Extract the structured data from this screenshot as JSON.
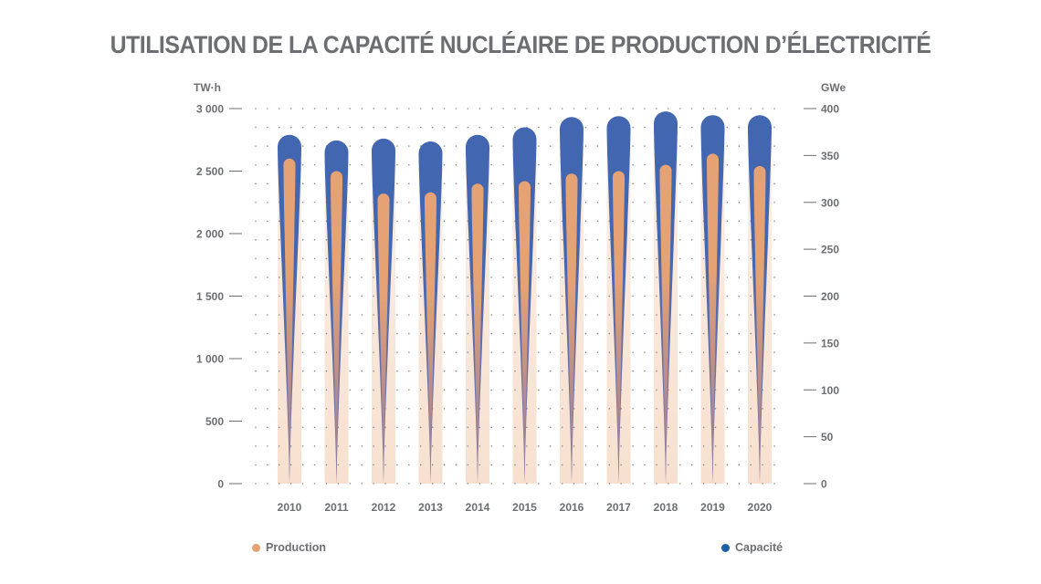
{
  "title": "UTILISATION DE LA CAPACITÉ NUCLÉAIRE DE PRODUCTION D’ÉLECTRICITÉ",
  "legend": {
    "production_label": "Production",
    "capacity_label": "Capacité"
  },
  "colors": {
    "production": "#e5a275",
    "production_light": "#f7e0cf",
    "capacity": "#4366b1",
    "capacity_mid": "#8a7aa2",
    "legend_capacity_dot": "#1b5fa5",
    "text": "#6d6e71",
    "grid_dots": "#8a8b8d"
  },
  "chart_data": {
    "type": "bar",
    "categories": [
      "2010",
      "2011",
      "2012",
      "2013",
      "2014",
      "2015",
      "2016",
      "2017",
      "2018",
      "2019",
      "2020"
    ],
    "series": [
      {
        "name": "Production",
        "axis": "left",
        "values": [
          2600,
          2500,
          2320,
          2330,
          2400,
          2420,
          2480,
          2500,
          2550,
          2640,
          2540
        ]
      },
      {
        "name": "Capacité",
        "axis": "right",
        "values": [
          372,
          366,
          368,
          365,
          372,
          380,
          391,
          392,
          397,
          393,
          393
        ]
      }
    ],
    "y_left": {
      "label": "TW·h",
      "ylim": [
        0,
        3000
      ],
      "ticks": [
        0,
        500,
        1000,
        1500,
        2000,
        2500,
        3000
      ],
      "tick_labels": [
        "0",
        "500",
        "1 000",
        "1 500",
        "2 000",
        "2 500",
        "3 000"
      ]
    },
    "y_right": {
      "label": "GWe",
      "ylim": [
        0,
        400
      ],
      "ticks": [
        0,
        50,
        100,
        150,
        200,
        250,
        300,
        350,
        400
      ],
      "tick_labels": [
        "0",
        "50",
        "100",
        "150",
        "200",
        "250",
        "300",
        "350",
        "400"
      ]
    },
    "grid": true,
    "legend_position": "bottom"
  }
}
